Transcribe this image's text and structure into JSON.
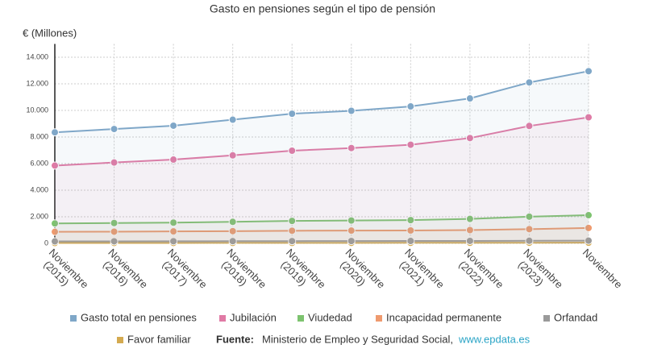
{
  "chart_data": {
    "type": "line",
    "title": "Gasto en pensiones según el tipo de pensión",
    "y_label": "€ (Millones)",
    "categories": [
      "Noviembre (2015)",
      "Noviembre (2016)",
      "Noviembre (2017)",
      "Noviembre (2018)",
      "Noviembre (2019)",
      "Noviembre (2020)",
      "Noviembre (2021)",
      "Noviembre (2022)",
      "Noviembre (2023)",
      "Noviembre"
    ],
    "series": [
      {
        "name": "Gasto total en pensiones",
        "color": "#7fa7c8",
        "values": [
          8350,
          8600,
          8850,
          9300,
          9750,
          9970,
          10300,
          10900,
          12100,
          12950
        ]
      },
      {
        "name": "Jubilación",
        "color": "#e07aa5",
        "values": [
          5850,
          6080,
          6300,
          6620,
          6970,
          7170,
          7420,
          7920,
          8830,
          9480
        ]
      },
      {
        "name": "Viudedad",
        "color": "#7dc36f",
        "values": [
          1500,
          1530,
          1560,
          1620,
          1690,
          1720,
          1750,
          1840,
          2010,
          2120
        ]
      },
      {
        "name": "Incapacidad permanente",
        "color": "#ef9a6e",
        "values": [
          870,
          880,
          900,
          920,
          950,
          960,
          970,
          1000,
          1070,
          1160
        ]
      },
      {
        "name": "Orfandad",
        "color": "#9a9a9a",
        "values": [
          150,
          155,
          160,
          165,
          170,
          175,
          180,
          185,
          195,
          205
        ]
      },
      {
        "name": "Favor familiar",
        "color": "#d4aa50",
        "values": [
          30,
          32,
          34,
          36,
          38,
          40,
          42,
          45,
          49,
          52
        ]
      }
    ],
    "ylim": [
      0,
      15000
    ],
    "yticks": [
      0,
      {
        "value": 2000,
        "label": "2.000"
      },
      {
        "value": 4000,
        "label": "4.000"
      },
      {
        "value": 6000,
        "label": "6.000"
      },
      {
        "value": 8000,
        "label": "8.000"
      },
      {
        "value": 10000,
        "label": "10.000"
      },
      {
        "value": 12000,
        "label": "12.000"
      },
      {
        "value": 14000,
        "label": "14.000"
      }
    ],
    "grid": true,
    "source_label": "Fuente:",
    "source_text": "Ministerio de Empleo y Seguridad Social,",
    "source_url": "www.epdata.es"
  }
}
